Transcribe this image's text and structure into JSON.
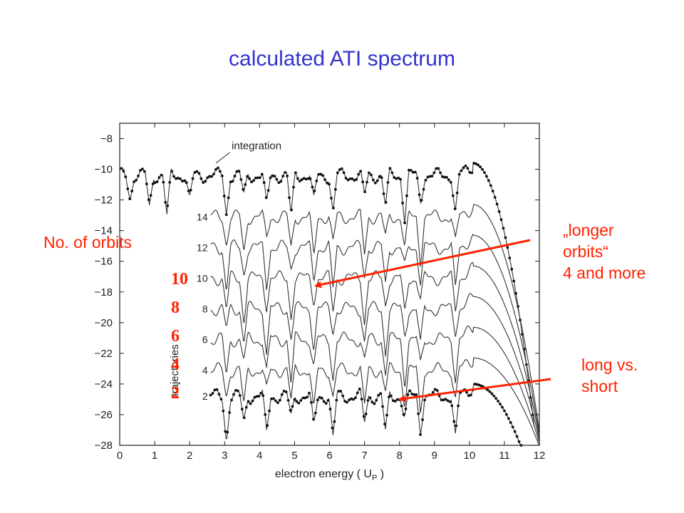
{
  "slide": {
    "title": "calculated ATI spectrum",
    "left_label": "No. of orbits",
    "orbit_counts": [
      "10",
      "8",
      "6",
      "4",
      "2"
    ],
    "longer_note": "„longer\norbits“\n4 and more",
    "long_short_note": "long vs.\nshort",
    "accent_color": "#ff2200",
    "title_color": "#3333cc"
  },
  "chart_data": {
    "type": "line",
    "title": "",
    "xlabel": "electron energy ( U",
    "xlabel_sub": "P",
    "xlabel_end": " )",
    "ylabel": "trajectories",
    "xlim": [
      0,
      12
    ],
    "ylim": [
      -28,
      -7
    ],
    "x_ticks": [
      "0",
      "1",
      "2",
      "3",
      "4",
      "5",
      "6",
      "7",
      "8",
      "9",
      "10",
      "11",
      "12"
    ],
    "y_ticks": [
      "−8",
      "−10",
      "−12",
      "−14",
      "−16",
      "−18",
      "−20",
      "−22",
      "−24",
      "−26",
      "−28"
    ],
    "grid": false,
    "series": [
      {
        "name": "integration",
        "level": -10.4,
        "x_start": 0.05,
        "cutoff": 10.1,
        "fall_end": 11.85,
        "markers": true
      },
      {
        "name": "14",
        "level": -13.1,
        "x_start": 2.6,
        "cutoff": 10.1,
        "fall_end": 12.0,
        "markers": false
      },
      {
        "name": "12",
        "level": -15.1,
        "x_start": 2.6,
        "cutoff": 10.1,
        "fall_end": 12.0,
        "markers": false
      },
      {
        "name": "10",
        "level": -17.1,
        "x_start": 2.6,
        "cutoff": 10.1,
        "fall_end": 12.0,
        "markers": false
      },
      {
        "name": "8",
        "level": -19.1,
        "x_start": 2.6,
        "cutoff": 10.1,
        "fall_end": 12.0,
        "markers": false
      },
      {
        "name": "6",
        "level": -21.1,
        "x_start": 2.6,
        "cutoff": 10.1,
        "fall_end": 12.0,
        "markers": false
      },
      {
        "name": "4",
        "level": -23.1,
        "x_start": 2.6,
        "cutoff": 10.1,
        "fall_end": 12.0,
        "markers": false
      },
      {
        "name": "2",
        "level": -24.8,
        "x_start": 2.6,
        "cutoff": 10.1,
        "fall_end": 11.5,
        "markers": true
      }
    ],
    "minima_x": [
      0.3,
      0.85,
      1.35,
      2.0,
      3.05,
      3.55,
      4.2,
      4.9,
      5.55,
      6.1,
      7.0,
      7.6,
      8.15,
      8.6,
      9.6
    ],
    "annotation": "integration",
    "arrows": [
      {
        "from_label": "longer_note",
        "to_x": 5.6,
        "to_y": -17.6
      },
      {
        "from_label": "long_short_note",
        "to_x": 8.0,
        "to_y": -25.0
      }
    ]
  }
}
